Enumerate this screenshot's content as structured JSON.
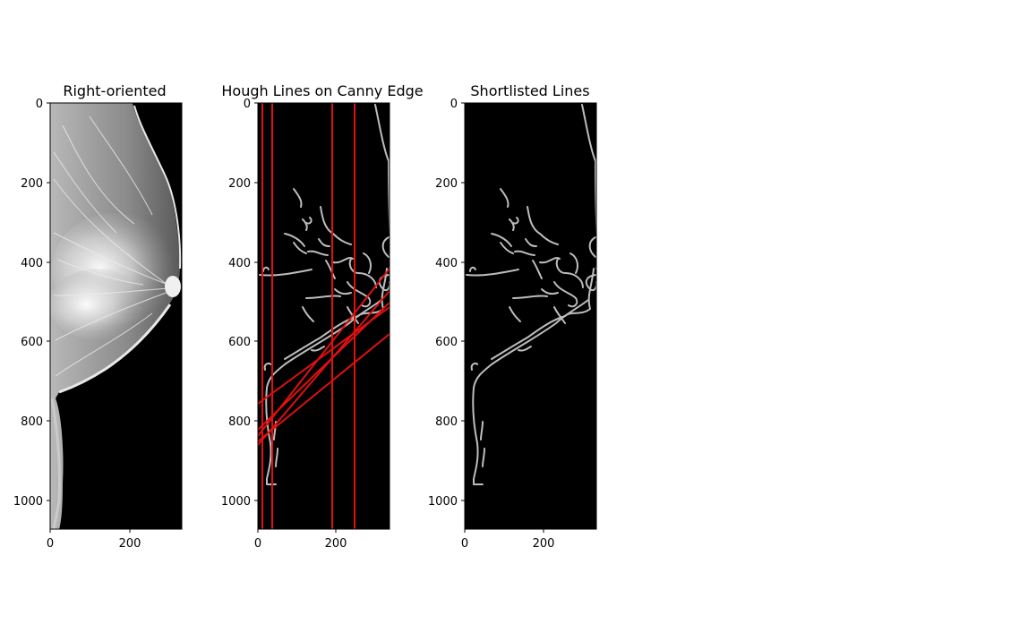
{
  "colors": {
    "hough_line": "#e01010",
    "edge": "#bdbdbd",
    "background": "#000000"
  },
  "panels": [
    {
      "title": "Right-oriented",
      "y_ticks": [
        "0",
        "200",
        "400",
        "600",
        "800",
        "1000"
      ],
      "x_ticks": [
        "0",
        "200"
      ]
    },
    {
      "title": "Hough Lines on Canny Edge",
      "y_ticks": [
        "0",
        "200",
        "400",
        "600",
        "800",
        "1000"
      ],
      "x_ticks": [
        "0",
        "200"
      ]
    },
    {
      "title": "Shortlisted Lines",
      "y_ticks": [
        "0",
        "200",
        "400",
        "600",
        "800",
        "1000"
      ],
      "x_ticks": [
        "0",
        "200"
      ]
    }
  ]
}
